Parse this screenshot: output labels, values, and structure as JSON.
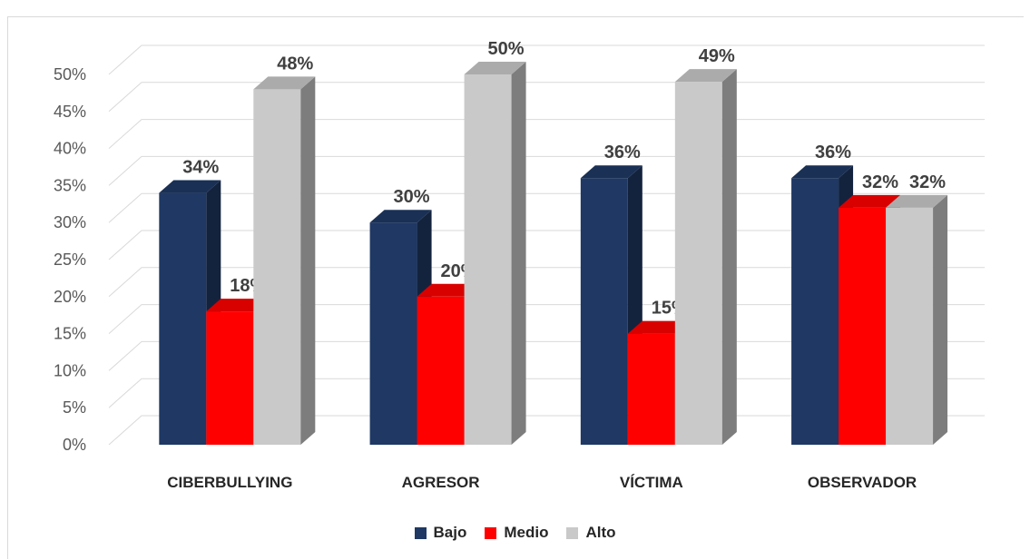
{
  "chart_data": {
    "type": "bar",
    "categories": [
      "CIBERBULLYING",
      "AGRESOR",
      "VÍCTIMA",
      "OBSERVADOR"
    ],
    "series": [
      {
        "name": "Bajo",
        "values": [
          34,
          30,
          36,
          36
        ],
        "labels": [
          "34%",
          "30%",
          "36%",
          "36%"
        ],
        "color": "#1f3864"
      },
      {
        "name": "Medio",
        "values": [
          18,
          20,
          15,
          32
        ],
        "labels": [
          "18%",
          "20%",
          "15%",
          "32%"
        ],
        "color": "#ff0000"
      },
      {
        "name": "Alto",
        "values": [
          48,
          50,
          49,
          32
        ],
        "labels": [
          "48%",
          "50%",
          "49%",
          "32%"
        ],
        "color": "#c9c9c9"
      }
    ],
    "y_ticks": [
      "0%",
      "5%",
      "10%",
      "15%",
      "20%",
      "25%",
      "30%",
      "35%",
      "40%",
      "45%",
      "50%"
    ],
    "ylim": [
      0,
      50
    ],
    "grid": true,
    "legend_position": "bottom",
    "style": "3d-clustered-column"
  }
}
